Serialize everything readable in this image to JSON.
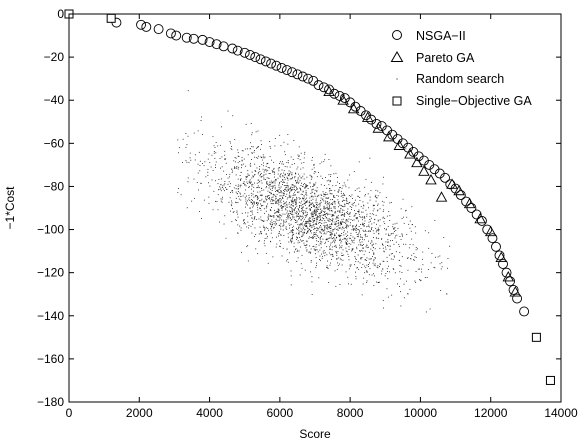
{
  "chart_data": {
    "type": "scatter",
    "title": "",
    "xlabel": "Score",
    "ylabel": "−1*Cost",
    "xlim": [
      0,
      14000
    ],
    "ylim": [
      -180,
      0
    ],
    "xticks": [
      0,
      2000,
      4000,
      6000,
      8000,
      10000,
      12000,
      14000
    ],
    "yticks": [
      -180,
      -160,
      -140,
      -120,
      -100,
      -80,
      -60,
      -40,
      -20,
      0
    ],
    "ytick_labels": [
      "−180",
      "−160",
      "−140",
      "−120",
      "−100",
      "−80",
      "−60",
      "−40",
      "−20",
      "0"
    ],
    "grid": false,
    "legend_position": "top-right",
    "series": [
      {
        "name": "NSGA−II",
        "marker": "circle",
        "points": [
          [
            1350,
            -4
          ],
          [
            2050,
            -5
          ],
          [
            2200,
            -6
          ],
          [
            2550,
            -7
          ],
          [
            2900,
            -9
          ],
          [
            3050,
            -10
          ],
          [
            3350,
            -11
          ],
          [
            3550,
            -11.5
          ],
          [
            3800,
            -12
          ],
          [
            4000,
            -13
          ],
          [
            4200,
            -14
          ],
          [
            4400,
            -15
          ],
          [
            4650,
            -16
          ],
          [
            4800,
            -17
          ],
          [
            5000,
            -18
          ],
          [
            5150,
            -19
          ],
          [
            5300,
            -20
          ],
          [
            5450,
            -21
          ],
          [
            5600,
            -22
          ],
          [
            5750,
            -23
          ],
          [
            5900,
            -24
          ],
          [
            6050,
            -25
          ],
          [
            6200,
            -26
          ],
          [
            6350,
            -27
          ],
          [
            6500,
            -28
          ],
          [
            6650,
            -29
          ],
          [
            6800,
            -30
          ],
          [
            6950,
            -31
          ],
          [
            7100,
            -33
          ],
          [
            7250,
            -34
          ],
          [
            7400,
            -35
          ],
          [
            7550,
            -37
          ],
          [
            7700,
            -38
          ],
          [
            7850,
            -39
          ],
          [
            8000,
            -41
          ],
          [
            8150,
            -43
          ],
          [
            8300,
            -45
          ],
          [
            8450,
            -47
          ],
          [
            8600,
            -49
          ],
          [
            8750,
            -51
          ],
          [
            8900,
            -52
          ],
          [
            9050,
            -54
          ],
          [
            9200,
            -56
          ],
          [
            9350,
            -58
          ],
          [
            9500,
            -60
          ],
          [
            9650,
            -62
          ],
          [
            9800,
            -64
          ],
          [
            9950,
            -66
          ],
          [
            10100,
            -68
          ],
          [
            10250,
            -70
          ],
          [
            10400,
            -72
          ],
          [
            10550,
            -74
          ],
          [
            10700,
            -76
          ],
          [
            10850,
            -79
          ],
          [
            11000,
            -81
          ],
          [
            11150,
            -84
          ],
          [
            11300,
            -87
          ],
          [
            11450,
            -90
          ],
          [
            11600,
            -93
          ],
          [
            11750,
            -96
          ],
          [
            11900,
            -100
          ],
          [
            12050,
            -104
          ],
          [
            12150,
            -108
          ],
          [
            12250,
            -112
          ],
          [
            12350,
            -116
          ],
          [
            12450,
            -120
          ],
          [
            12550,
            -124
          ],
          [
            12650,
            -128
          ],
          [
            12750,
            -132
          ],
          [
            12950,
            -138
          ]
        ]
      },
      {
        "name": "Pareto GA",
        "marker": "triangle",
        "points": [
          [
            7400,
            -36
          ],
          [
            7800,
            -40
          ],
          [
            8100,
            -44
          ],
          [
            8500,
            -48
          ],
          [
            8800,
            -53
          ],
          [
            9100,
            -57
          ],
          [
            9400,
            -61
          ],
          [
            9700,
            -65
          ],
          [
            9900,
            -69
          ],
          [
            10100,
            -73
          ],
          [
            10300,
            -77
          ],
          [
            10600,
            -85
          ],
          [
            10900,
            -79
          ],
          [
            11100,
            -82
          ],
          [
            11400,
            -88
          ],
          [
            11700,
            -95
          ],
          [
            12000,
            -101
          ],
          [
            12300,
            -113
          ],
          [
            12500,
            -122
          ],
          [
            12700,
            -129
          ]
        ]
      },
      {
        "name": "Random search",
        "marker": "dot",
        "sample_count": 2600,
        "center": [
          6800,
          -92
        ],
        "x_range": [
          3000,
          11000
        ],
        "y_range": [
          -150,
          -28
        ],
        "trend_slope_per_1000": -6.3,
        "spread": [
          1450,
          11
        ]
      },
      {
        "name": "Single−Objective GA",
        "marker": "square",
        "points": [
          [
            0,
            0
          ],
          [
            1200,
            -2
          ],
          [
            13300,
            -150
          ],
          [
            13700,
            -170
          ]
        ]
      }
    ]
  }
}
